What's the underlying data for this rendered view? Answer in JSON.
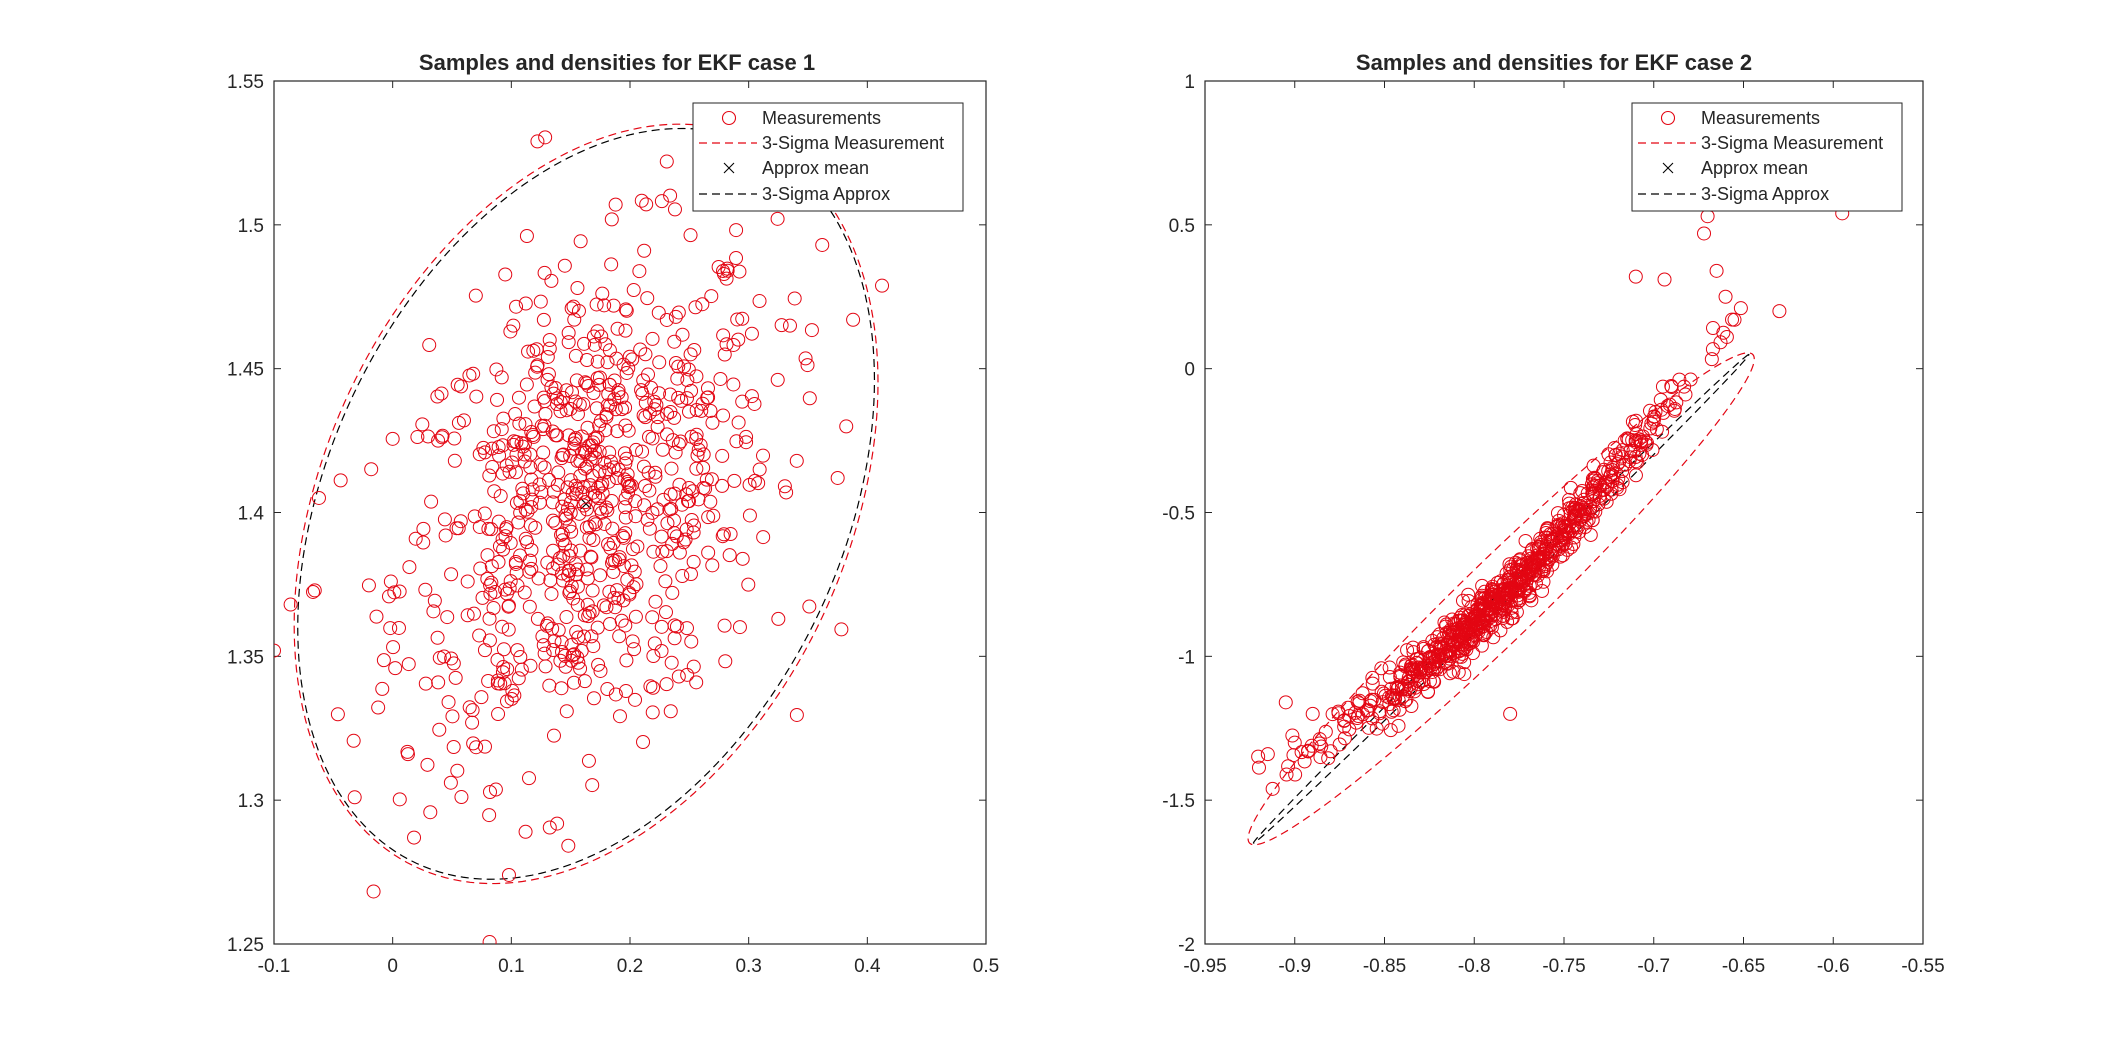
{
  "colors": {
    "measurement": "#e30613",
    "approx": "#000000",
    "axis": "#262626",
    "background": "#ffffff"
  },
  "legend": {
    "position": "top-right",
    "entries": [
      "Measurements",
      "3-Sigma Measurement",
      "Approx mean",
      "3-Sigma Approx"
    ]
  },
  "chart_data": [
    {
      "type": "scatter",
      "title": "Samples and densities for EKF case 1",
      "xlabel": "",
      "ylabel": "",
      "xlim": [
        -0.1,
        0.5
      ],
      "ylim": [
        1.25,
        1.55
      ],
      "xticks": [
        -0.1,
        0,
        0.1,
        0.2,
        0.3,
        0.4,
        0.5
      ],
      "xtick_labels": [
        "-0.1",
        "0",
        "0.1",
        "0.2",
        "0.3",
        "0.4",
        "0.5"
      ],
      "yticks": [
        1.25,
        1.3,
        1.35,
        1.4,
        1.45,
        1.5,
        1.55
      ],
      "ytick_labels": [
        "1.25",
        "1.3",
        "1.35",
        "1.4",
        "1.45",
        "1.5",
        "1.55"
      ],
      "grid": false,
      "measurement_mean": [
        0.163,
        1.403
      ],
      "measurement_sigma": [
        0.079,
        0.043
      ],
      "measurement_corr": 0.32,
      "sample_count": 800,
      "outlier_points": [
        [
          0.122,
          1.529
        ],
        [
          0.098,
          1.274
        ],
        [
          -0.1,
          1.352
        ],
        [
          -0.086,
          1.368
        ],
        [
          0.388,
          1.467
        ],
        [
          0.362,
          1.493
        ],
        [
          0.231,
          1.522
        ],
        [
          -0.032,
          1.301
        ],
        [
          0.112,
          1.289
        ],
        [
          0.018,
          1.287
        ],
        [
          0.375,
          1.412
        ],
        [
          0.325,
          1.363
        ]
      ],
      "ellipse_3sigma_measurement": {
        "center": [
          0.163,
          1.403
        ],
        "sigma": [
          0.082,
          0.044
        ],
        "corr": 0.32
      },
      "approx_mean": [
        0.163,
        1.403
      ],
      "ellipse_3sigma_approx": {
        "center": [
          0.163,
          1.403
        ],
        "sigma": [
          0.081,
          0.0435
        ],
        "corr": 0.33
      }
    },
    {
      "type": "scatter",
      "title": "Samples and densities for EKF case 2",
      "xlabel": "",
      "ylabel": "",
      "xlim": [
        -0.95,
        -0.55
      ],
      "ylim": [
        -2,
        1
      ],
      "xticks": [
        -0.95,
        -0.9,
        -0.85,
        -0.8,
        -0.75,
        -0.7,
        -0.65,
        -0.6,
        -0.55
      ],
      "xtick_labels": [
        "-0.95",
        "-0.9",
        "-0.85",
        "-0.8",
        "-0.75",
        "-0.7",
        "-0.65",
        "-0.6",
        "-0.55"
      ],
      "yticks": [
        -2,
        -1.5,
        -1,
        -0.5,
        0,
        0.5,
        1
      ],
      "ytick_labels": [
        "-2",
        "-1.5",
        "-1",
        "-0.5",
        "0",
        "0.5",
        "1"
      ],
      "grid": false,
      "measurement_mean": [
        -0.785,
        -0.8
      ],
      "measurement_sigma": [
        0.045,
        0.28
      ],
      "sample_count": 800,
      "outlier_points": [
        [
          -0.595,
          0.54
        ],
        [
          -0.63,
          0.2
        ],
        [
          -0.67,
          0.53
        ],
        [
          -0.668,
          0.57
        ],
        [
          -0.665,
          0.34
        ],
        [
          -0.71,
          0.32
        ],
        [
          -0.694,
          0.31
        ],
        [
          -0.672,
          0.47
        ],
        [
          -0.66,
          0.25
        ],
        [
          -0.655,
          0.17
        ],
        [
          -0.9,
          -1.3
        ],
        [
          -0.915,
          -1.34
        ],
        [
          -0.905,
          -1.16
        ],
        [
          -0.89,
          -1.2
        ],
        [
          -0.78,
          -1.2
        ],
        [
          -0.88,
          -1.33
        ]
      ],
      "ellipse_3sigma_measurement": {
        "center": [
          -0.785,
          -0.8
        ],
        "sigma": [
          0.047,
          0.285
        ],
        "corr": 0.975
      },
      "approx_mean": [
        -0.785,
        -0.8
      ],
      "ellipse_3sigma_approx": {
        "center": [
          -0.785,
          -0.8
        ],
        "sigma": [
          0.046,
          0.283
        ],
        "corr": 0.9995
      }
    }
  ]
}
